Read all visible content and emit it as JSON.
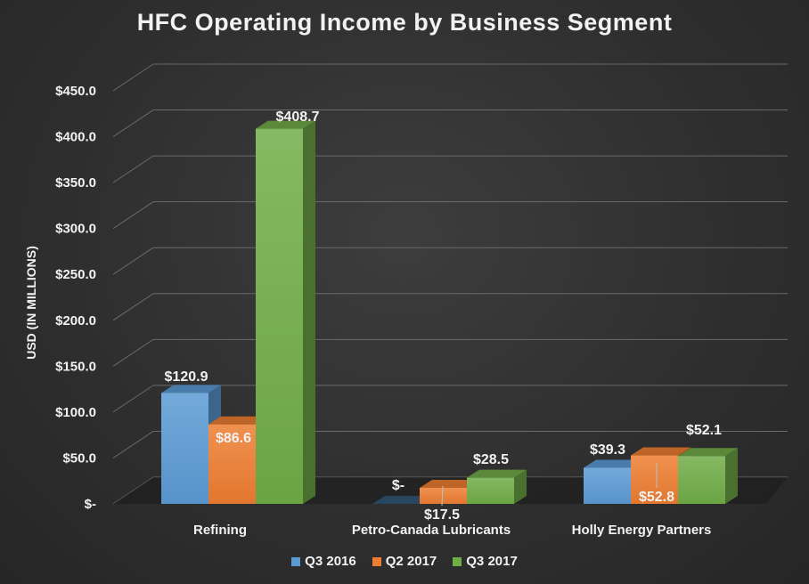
{
  "chart_data": {
    "type": "bar",
    "title": "HFC Operating Income by Business Segment",
    "ylabel": "USD (IN MILLIONS)",
    "xlabel": "",
    "ylim": [
      0,
      450
    ],
    "y_ticks": [
      0,
      50,
      100,
      150,
      200,
      250,
      300,
      350,
      400,
      450
    ],
    "y_tick_labels": [
      "$-",
      "$50.0",
      "$100.0",
      "$150.0",
      "$200.0",
      "$250.0",
      "$300.0",
      "$350.0",
      "$400.0",
      "$450.0"
    ],
    "categories": [
      "Refining",
      "Petro-Canada Lubricants",
      "Holly Energy Partners"
    ],
    "series": [
      {
        "name": "Q3 2016",
        "color": "#5b9bd5",
        "values": [
          120.9,
          0,
          39.3
        ],
        "labels": [
          "$120.9",
          "$-",
          "$39.3"
        ]
      },
      {
        "name": "Q2 2017",
        "color": "#ed7d31",
        "values": [
          86.6,
          17.5,
          52.8
        ],
        "labels": [
          "$86.6",
          "$17.5",
          "$52.8"
        ]
      },
      {
        "name": "Q3 2017",
        "color": "#70ad47",
        "values": [
          408.7,
          28.5,
          52.1
        ],
        "labels": [
          "$408.7",
          "$28.5",
          "$52.1"
        ]
      }
    ],
    "grid": true,
    "legend_position": "bottom",
    "style": "3d-clustered-column"
  }
}
